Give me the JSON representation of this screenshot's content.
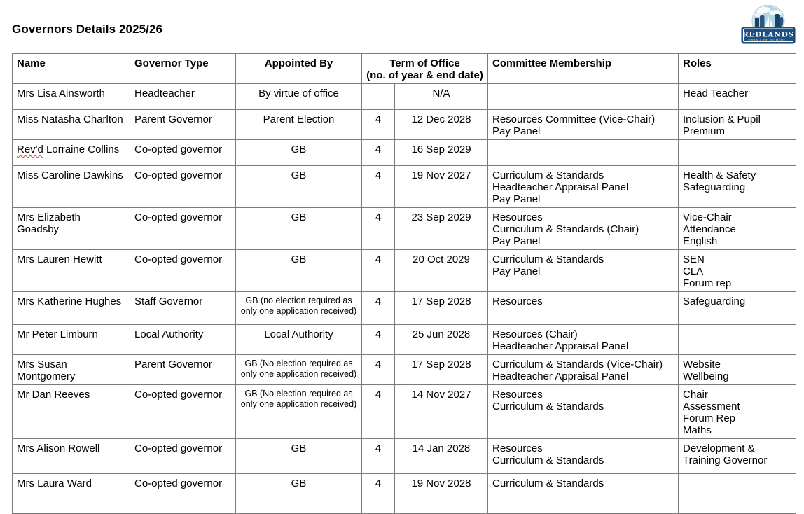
{
  "page": {
    "title": "Governors Details 2025/26"
  },
  "logo": {
    "school_name": "REDLANDS",
    "school_type": "PRIMARY SCHOOL"
  },
  "colors": {
    "table_border": "#7a7a7a",
    "logo_navy": "#1d5080",
    "logo_navy_dark": "#16395a",
    "logo_sky": "#b3d6e8",
    "logo_cliff": "#1d4161",
    "logo_gold": "#e8b04a",
    "spellcheck_red": "#e03c31"
  },
  "table": {
    "headers": {
      "name": "Name",
      "governor_type": "Governor Type",
      "appointed_by": "Appointed By",
      "term_of_office_line1": "Term of Office",
      "term_of_office_line2": "(no. of year & end date)",
      "committee_membership": "Committee Membership",
      "roles": "Roles"
    },
    "rows": [
      {
        "name": "Mrs Lisa Ainsworth",
        "governor_type": "Headteacher",
        "appointed_by": "By virtue of office",
        "appointed_by_small": false,
        "years": "",
        "end_date": "N/A",
        "committee": [],
        "roles": [
          "Head Teacher"
        ]
      },
      {
        "name": "Miss Natasha Charlton",
        "governor_type": "Parent Governor",
        "appointed_by": "Parent Election",
        "appointed_by_small": false,
        "years": "4",
        "end_date": "12 Dec 2028",
        "committee": [
          "Resources Committee (Vice-Chair)",
          "Pay Panel"
        ],
        "roles": [
          "Inclusion & Pupil Premium"
        ]
      },
      {
        "name": "Rev'd Lorraine Collins",
        "name_spellcheck_prefix": "Rev'd",
        "governor_type": "Co-opted governor",
        "appointed_by": "GB",
        "appointed_by_small": false,
        "years": "4",
        "end_date": "16 Sep 2029",
        "committee": [],
        "roles": []
      },
      {
        "name": "Miss Caroline Dawkins",
        "governor_type": "Co-opted governor",
        "appointed_by": "GB",
        "appointed_by_small": false,
        "years": "4",
        "end_date": "19 Nov 2027",
        "committee": [
          "Curriculum & Standards",
          "Headteacher Appraisal Panel",
          "Pay Panel"
        ],
        "roles": [
          "Health & Safety",
          "Safeguarding"
        ]
      },
      {
        "name": "Mrs Elizabeth Goadsby",
        "governor_type": "Co-opted governor",
        "appointed_by": "GB",
        "appointed_by_small": false,
        "years": "4",
        "end_date": "23 Sep 2029",
        "committee": [
          "Resources",
          "Curriculum & Standards (Chair)",
          "Pay Panel"
        ],
        "roles": [
          "Vice-Chair",
          "Attendance",
          "English"
        ]
      },
      {
        "name": "Mrs Lauren Hewitt",
        "governor_type": "Co-opted governor",
        "appointed_by": "GB",
        "appointed_by_small": false,
        "years": "4",
        "end_date": "20 Oct 2029",
        "committee": [
          "Curriculum & Standards",
          "Pay Panel"
        ],
        "roles": [
          "SEN",
          "CLA",
          "Forum rep"
        ]
      },
      {
        "name": "Mrs Katherine Hughes",
        "governor_type": "Staff Governor",
        "appointed_by": "GB (no election required as only one application received)",
        "appointed_by_small": true,
        "years": "4",
        "end_date": "17 Sep 2028",
        "committee": [
          "Resources"
        ],
        "roles": [
          "Safeguarding"
        ]
      },
      {
        "name": "Mr Peter Limburn",
        "governor_type": "Local Authority",
        "appointed_by": "Local Authority",
        "appointed_by_small": false,
        "years": "4",
        "end_date": "25 Jun 2028",
        "committee": [
          "Resources (Chair)",
          "Headteacher Appraisal Panel"
        ],
        "roles": []
      },
      {
        "name": "Mrs Susan Montgomery",
        "governor_type": "Parent Governor",
        "appointed_by": "GB (No election required as only one application received)",
        "appointed_by_small": true,
        "years": "4",
        "end_date": "17 Sep 2028",
        "committee": [
          "Curriculum & Standards (Vice-Chair)",
          "Headteacher Appraisal Panel"
        ],
        "roles": [
          "Website",
          "Wellbeing"
        ]
      },
      {
        "name": "Mr Dan Reeves",
        "governor_type": "Co-opted governor",
        "appointed_by": "GB (No election required as only one application received)",
        "appointed_by_small": true,
        "years": "4",
        "end_date": "14 Nov 2027",
        "committee": [
          "Resources",
          "Curriculum & Standards"
        ],
        "roles": [
          "Chair",
          "Assessment",
          "Forum Rep",
          "Maths"
        ]
      },
      {
        "name": "Mrs Alison Rowell",
        "governor_type": "Co-opted governor",
        "appointed_by": "GB",
        "appointed_by_small": false,
        "years": "4",
        "end_date": "14 Jan 2028",
        "committee": [
          "Resources",
          "Curriculum & Standards"
        ],
        "roles": [
          "Development & Training Governor"
        ]
      },
      {
        "name": "Mrs Laura Ward",
        "governor_type": "Co-opted governor",
        "appointed_by": "GB",
        "appointed_by_small": false,
        "years": "4",
        "end_date": "19 Nov 2028",
        "committee": [
          "Curriculum & Standards"
        ],
        "roles": []
      }
    ]
  }
}
